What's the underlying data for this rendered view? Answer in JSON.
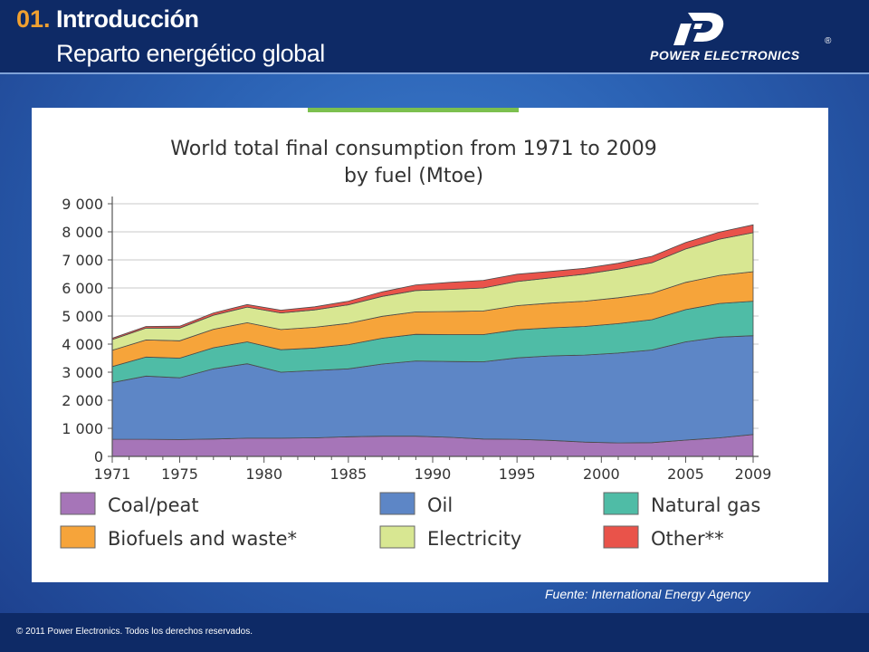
{
  "header": {
    "section_number": "01.",
    "title": "Introducción",
    "subtitle": "Reparto energético global",
    "logo_text": "POWER ELECTRONICS",
    "logo_reg": "®"
  },
  "source_note": "Fuente: International Energy Agency",
  "footer": {
    "copyright": "© 2011 Power Electronics. Todos los derechos reservados."
  },
  "colors": {
    "header_bg": "#0e2a66",
    "accent_orange": "#f0a030",
    "coal": "#a675b8",
    "oil": "#5d86c6",
    "natural_gas": "#4fbca6",
    "biofuels": "#f6a43a",
    "electricity": "#d8e792",
    "other": "#e9534a",
    "green_bar": "#7cc04e"
  },
  "chart_data": {
    "type": "area",
    "stacked": true,
    "title": "World total final consumption from 1971 to 2009",
    "title_line2": "by fuel (Mtoe)",
    "xlabel": "",
    "ylabel": "",
    "ylim": [
      0,
      9000
    ],
    "xlim": [
      1971,
      2009
    ],
    "grid": true,
    "legend_position": "bottom",
    "x_ticks": [
      1971,
      1975,
      1980,
      1985,
      1990,
      1995,
      2000,
      2005,
      2009
    ],
    "y_ticks": [
      0,
      1000,
      2000,
      3000,
      4000,
      5000,
      6000,
      7000,
      8000,
      9000
    ],
    "y_tick_labels": [
      "0",
      "1 000",
      "2 000",
      "3 000",
      "4 000",
      "5 000",
      "6 000",
      "7 000",
      "8 000",
      "9 000"
    ],
    "x": [
      1971,
      1973,
      1975,
      1977,
      1979,
      1981,
      1983,
      1985,
      1987,
      1989,
      1991,
      1993,
      1995,
      1997,
      1999,
      2001,
      2003,
      2005,
      2007,
      2009
    ],
    "series": [
      {
        "name": "Coal/peat",
        "values": [
          610,
          610,
          600,
          620,
          650,
          650,
          660,
          700,
          720,
          720,
          680,
          620,
          610,
          570,
          510,
          480,
          490,
          580,
          660,
          780
        ]
      },
      {
        "name": "Oil",
        "values": [
          2020,
          2250,
          2200,
          2500,
          2650,
          2350,
          2400,
          2420,
          2570,
          2680,
          2700,
          2750,
          2900,
          3010,
          3100,
          3200,
          3300,
          3500,
          3590,
          3520
        ]
      },
      {
        "name": "Natural gas",
        "values": [
          570,
          680,
          700,
          750,
          780,
          800,
          800,
          860,
          920,
          950,
          960,
          970,
          1000,
          1000,
          1020,
          1050,
          1080,
          1150,
          1200,
          1230
        ]
      },
      {
        "name": "Biofuels and waste*",
        "values": [
          580,
          610,
          620,
          660,
          680,
          720,
          740,
          760,
          780,
          800,
          820,
          840,
          860,
          880,
          900,
          920,
          940,
          970,
          1000,
          1050
        ]
      },
      {
        "name": "Electricity",
        "values": [
          380,
          420,
          450,
          500,
          560,
          590,
          620,
          660,
          710,
          760,
          790,
          820,
          860,
          900,
          960,
          1020,
          1090,
          1190,
          1290,
          1390
        ]
      },
      {
        "name": "Other**",
        "values": [
          50,
          60,
          70,
          80,
          90,
          100,
          110,
          130,
          160,
          200,
          250,
          270,
          260,
          230,
          210,
          210,
          230,
          230,
          250,
          280
        ]
      }
    ]
  }
}
